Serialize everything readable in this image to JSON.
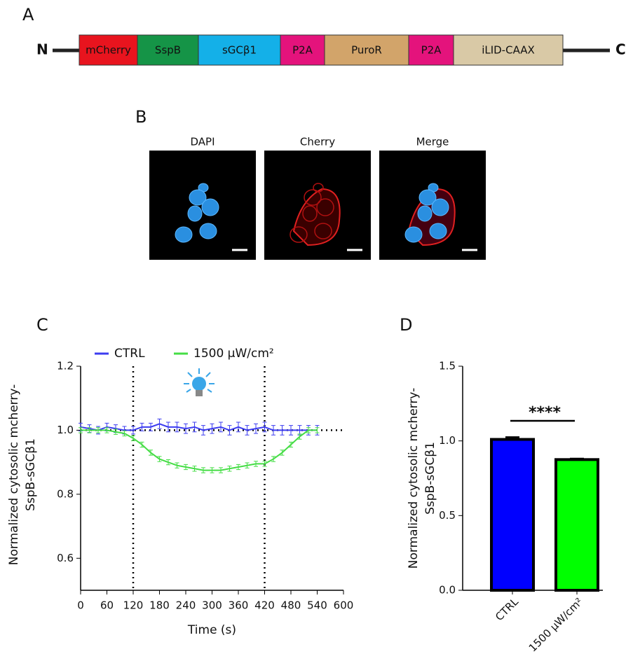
{
  "panel_a": {
    "label": "A",
    "n_label": "N",
    "c_label": "C",
    "segments": [
      {
        "name": "mCherry",
        "color": "#e8141e"
      },
      {
        "name": "SspB",
        "color": "#159447"
      },
      {
        "name": "sGCβ1",
        "color": "#14b0e8"
      },
      {
        "name": "P2A",
        "color": "#e4137c"
      },
      {
        "name": "PuroR",
        "color": "#d2a46a"
      },
      {
        "name": "P2A",
        "color": "#e4137c"
      },
      {
        "name": "iLID-CAAX",
        "color": "#d9c9a6"
      }
    ]
  },
  "panel_b": {
    "label": "B",
    "images": [
      {
        "title": "DAPI"
      },
      {
        "title": "Cherry"
      },
      {
        "title": "Merge"
      }
    ]
  },
  "chart_data": [
    {
      "type": "line",
      "panel_label": "C",
      "xlabel": "Time (s)",
      "ylabel": [
        "Normalized cytosolic mcherry-",
        "SspB-sGCβ1"
      ],
      "x": [
        0,
        20,
        40,
        60,
        80,
        100,
        120,
        140,
        160,
        180,
        200,
        220,
        240,
        260,
        280,
        300,
        320,
        340,
        360,
        380,
        400,
        420,
        440,
        460,
        480,
        500,
        520,
        540
      ],
      "series": [
        {
          "name": "CTRL",
          "color": "#3c3cf0",
          "values": [
            1.01,
            1.005,
            1.0,
            1.01,
            1.005,
            1.0,
            1.0,
            1.01,
            1.01,
            1.02,
            1.01,
            1.01,
            1.005,
            1.01,
            1.0,
            1.005,
            1.01,
            1.0,
            1.01,
            1.0,
            1.005,
            1.01,
            1.0,
            1.0,
            1.0,
            1.0,
            1.0,
            1.0
          ],
          "errors": [
            0.012,
            0.012,
            0.012,
            0.012,
            0.012,
            0.012,
            0.012,
            0.012,
            0.012,
            0.015,
            0.015,
            0.015,
            0.015,
            0.015,
            0.015,
            0.015,
            0.015,
            0.015,
            0.015,
            0.015,
            0.015,
            0.015,
            0.015,
            0.015,
            0.015,
            0.015,
            0.015,
            0.015
          ]
        },
        {
          "name": "1500 μW/cm²",
          "color": "#45dd45",
          "values": [
            1.0,
            1.0,
            1.0,
            1.0,
            0.995,
            0.99,
            0.975,
            0.955,
            0.93,
            0.91,
            0.9,
            0.89,
            0.885,
            0.88,
            0.875,
            0.875,
            0.875,
            0.88,
            0.885,
            0.89,
            0.895,
            0.895,
            0.91,
            0.93,
            0.955,
            0.98,
            1.0,
            1.0
          ],
          "errors": [
            0.008,
            0.008,
            0.008,
            0.008,
            0.008,
            0.008,
            0.008,
            0.008,
            0.008,
            0.008,
            0.008,
            0.008,
            0.008,
            0.008,
            0.008,
            0.008,
            0.008,
            0.008,
            0.008,
            0.008,
            0.008,
            0.008,
            0.008,
            0.008,
            0.008,
            0.008,
            0.008,
            0.008
          ]
        }
      ],
      "reference_lines": {
        "x": [
          120,
          420
        ],
        "y": 1
      },
      "xlim": [
        0,
        600
      ],
      "xticks": [
        0,
        60,
        120,
        180,
        240,
        300,
        360,
        420,
        480,
        540,
        600
      ],
      "ylim": [
        0.5,
        1.2
      ],
      "yticks": [
        0.6,
        0.8,
        {
          "value": 1,
          "label": "1.0"
        },
        1.2
      ]
    },
    {
      "type": "bar",
      "panel_label": "D",
      "ylabel": [
        "Normalized cytosolic mcherry-",
        "SspB-sGCβ1"
      ],
      "categories": [
        "CTRL",
        "1500 μW/cm²"
      ],
      "values": [
        1.01,
        0.875
      ],
      "errors": [
        0.015,
        0.006
      ],
      "colors": [
        "#0000ff",
        "#00ff00"
      ],
      "annotation": "****",
      "ylim": [
        0,
        1.5
      ],
      "yticks": [
        {
          "value": 0,
          "label": "0.0"
        },
        0.5,
        {
          "value": 1,
          "label": "1.0"
        },
        1.5
      ]
    }
  ]
}
